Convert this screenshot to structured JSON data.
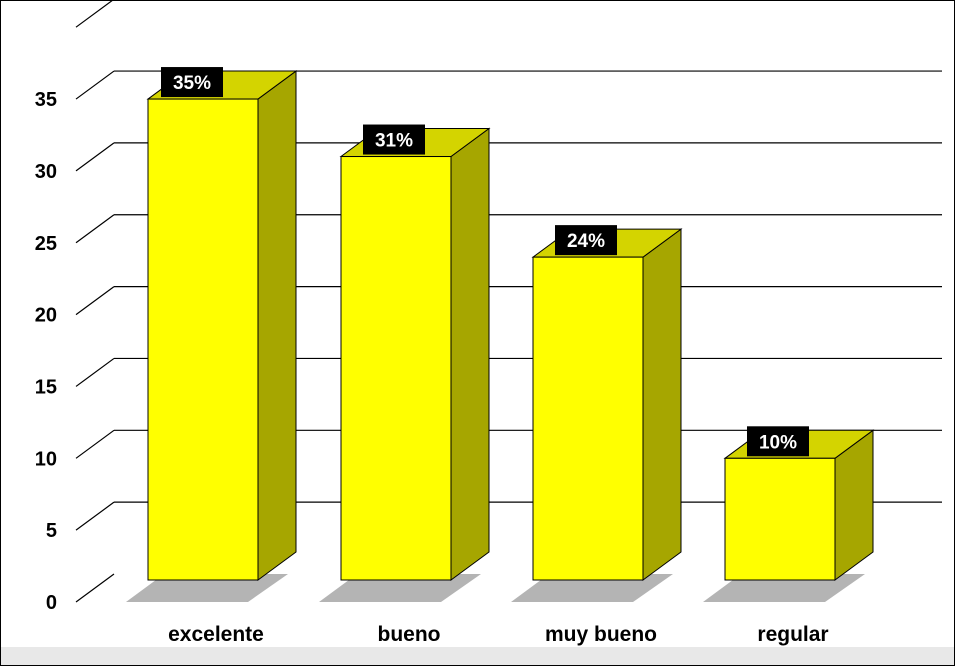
{
  "chart_data": {
    "type": "bar",
    "categories": [
      "excelente",
      "bueno",
      "muy bueno",
      "regular"
    ],
    "values": [
      35,
      31,
      24,
      10
    ],
    "data_labels": [
      "35%",
      "31%",
      "24%",
      "10%"
    ],
    "ylim": [
      0,
      35
    ],
    "yticks": [
      "0",
      "5",
      "10",
      "15",
      "20",
      "25",
      "30",
      "35"
    ],
    "grid": true,
    "style": "3d-column",
    "colors": {
      "bar_front": "#ffff00",
      "bar_side": "#a6a600",
      "bar_top": "#d4d400",
      "shadow": "#777777",
      "label_bg": "#000000",
      "label_text": "#ffffff",
      "frame_band": "#e8e8e8"
    }
  }
}
